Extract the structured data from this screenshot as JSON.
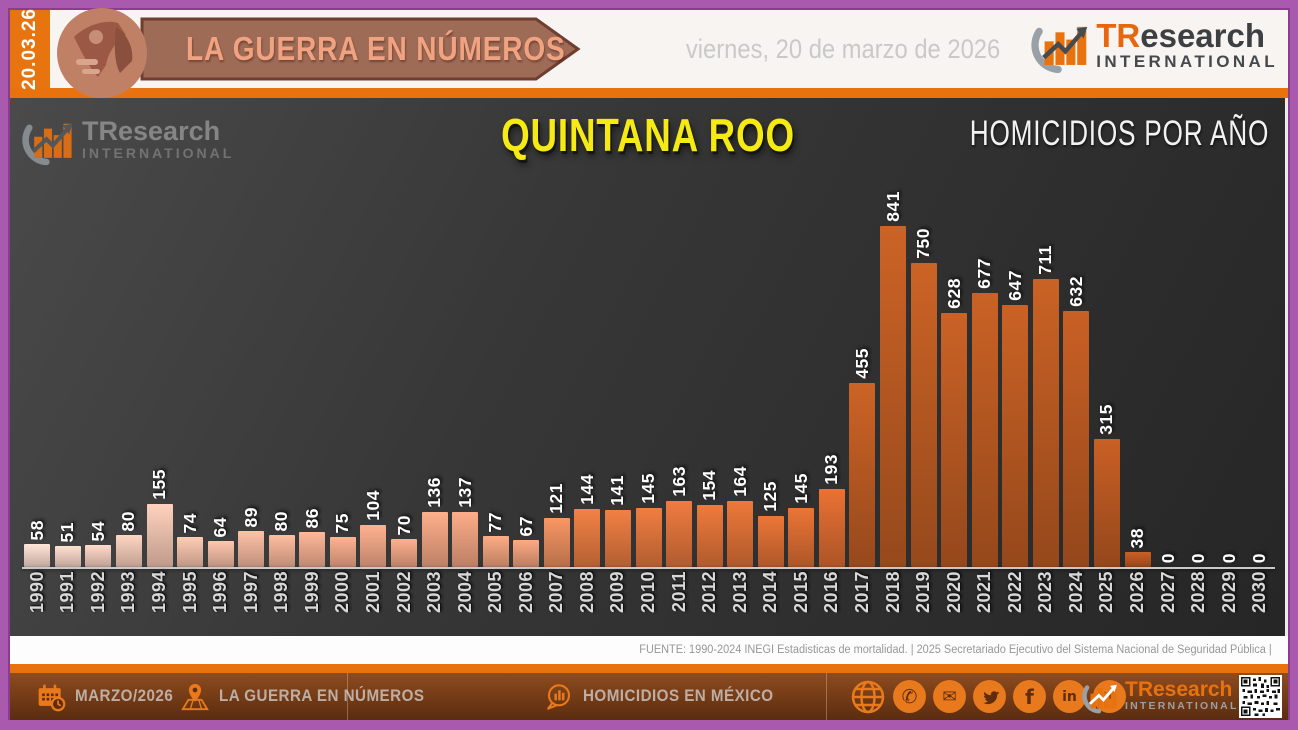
{
  "frame": {
    "date_stamp": "20.03.26"
  },
  "header": {
    "banner_title": "LA GUERRA EN NÚMEROS",
    "date_text": "viernes, 20 de marzo de 2026",
    "brand": {
      "name_tr": "TR",
      "name_rest": "esearch",
      "subtitle": "INTERNATIONAL"
    }
  },
  "watermark": {
    "name_tr": "TR",
    "name_rest": "esearch",
    "subtitle": "INTERNATIONAL"
  },
  "chart_data": {
    "type": "bar",
    "title": "QUINTANA ROO",
    "right_label": "HOMICIDIOS POR AÑO",
    "categories": [
      "1990",
      "1991",
      "1992",
      "1993",
      "1994",
      "1995",
      "1996",
      "1997",
      "1998",
      "1999",
      "2000",
      "2001",
      "2002",
      "2003",
      "2004",
      "2005",
      "2006",
      "2007",
      "2008",
      "2009",
      "2010",
      "2011",
      "2012",
      "2013",
      "2014",
      "2015",
      "2016",
      "2017",
      "2018",
      "2019",
      "2020",
      "2021",
      "2022",
      "2023",
      "2024",
      "2025",
      "2026",
      "2027",
      "2028",
      "2029",
      "2030"
    ],
    "values": [
      58,
      51,
      54,
      80,
      155,
      74,
      64,
      89,
      80,
      86,
      75,
      104,
      70,
      136,
      137,
      77,
      67,
      121,
      144,
      141,
      145,
      163,
      154,
      164,
      125,
      145,
      193,
      455,
      841,
      750,
      628,
      677,
      647,
      711,
      632,
      315,
      38,
      0,
      0,
      0,
      0
    ],
    "value_labels": "printed vertically above each bar",
    "axis": "hidden (no y-axis); years printed vertically below bars",
    "ylim": [
      0,
      870
    ],
    "legend": "none",
    "grid": "off",
    "bar_color_anchors": [
      {
        "i": 0,
        "c": "#f7d9cc"
      },
      {
        "i": 10,
        "c": "#f2a98a"
      },
      {
        "i": 16,
        "c": "#efa07c"
      },
      {
        "i": 18,
        "c": "#e57b42"
      },
      {
        "i": 26,
        "c": "#dd6c31"
      },
      {
        "i": 27,
        "c": "#c05d24"
      },
      {
        "i": 40,
        "c": "#bd5a22"
      }
    ]
  },
  "source": "FUENTE: 1990-2024 INEGI Estadisticas de mortalidad. | 2025 Secretariado Ejecutivo del Sistema Nacional de Seguridad Pública |",
  "footer": {
    "month": "MARZO/2026",
    "program": "LA GUERRA EN NÚMEROS",
    "topic": "HOMICIDIOS EN MÉXICO",
    "social_icons": [
      "globe-icon",
      "phone-icon",
      "email-icon",
      "twitter-icon",
      "facebook-icon",
      "linkedin-icon",
      "youtube-icon"
    ],
    "social_glyphs": {
      "phone": "✆",
      "email": "✉",
      "facebook": "f",
      "linkedin": "in",
      "youtube": "▶"
    },
    "brand": {
      "name": "TResearch",
      "subtitle": "INTERNATIONAL"
    }
  },
  "colors": {
    "accent_orange": "#e8730e",
    "frame_purple": "#a959ae",
    "chart_bg_dark": "#2e2e2e",
    "title_yellow": "#f6ea14",
    "banner_fill": "#9d6b56",
    "footer_brown_top": "#8d4c1f",
    "footer_brown_bottom": "#5a2c10"
  }
}
